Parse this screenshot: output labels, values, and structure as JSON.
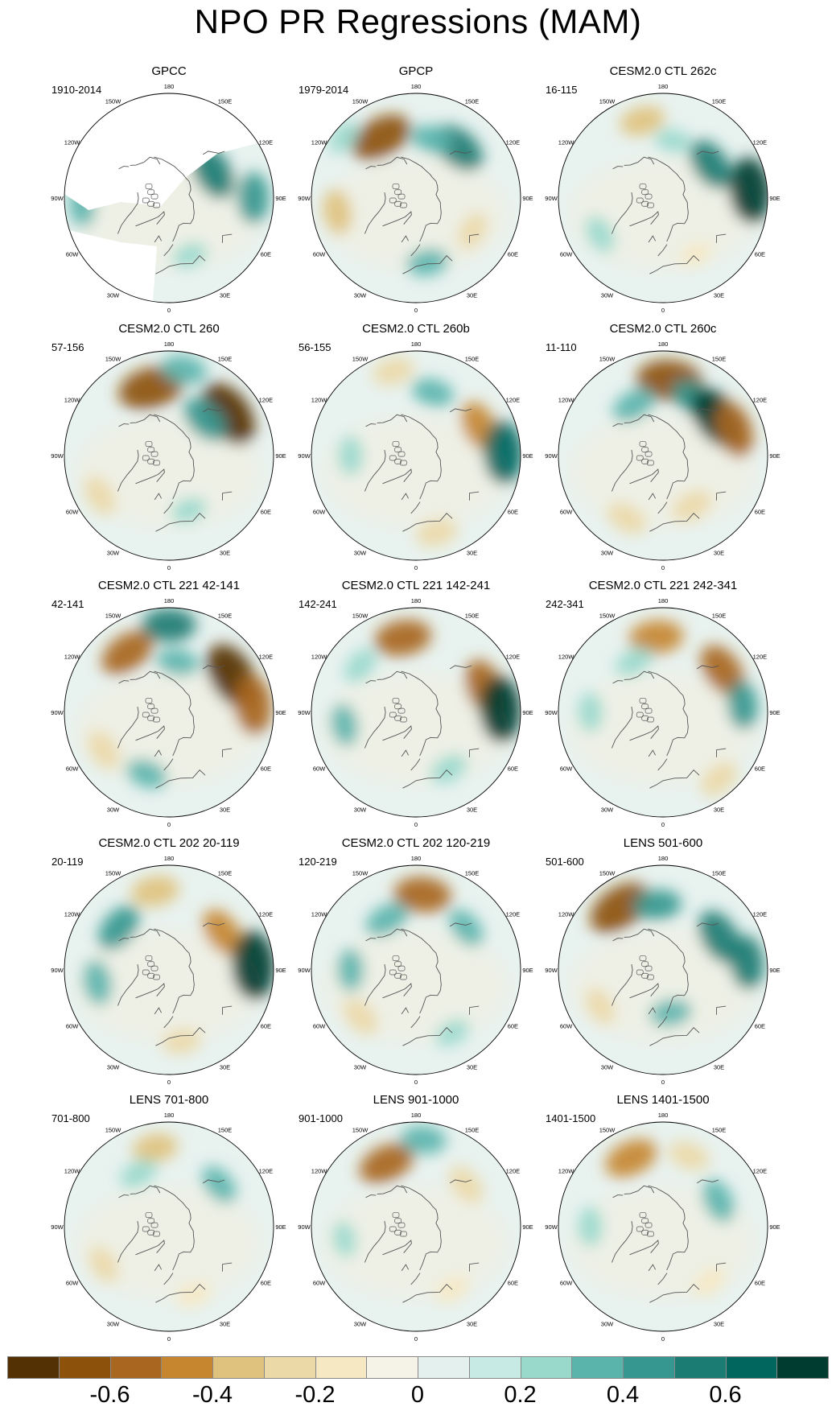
{
  "title": "NPO PR Regressions (MAM)",
  "longitude_labels": [
    "180",
    "150E",
    "120E",
    "90E",
    "60E",
    "30E",
    "0",
    "30W",
    "60W",
    "90W",
    "120W",
    "150W"
  ],
  "panels": [
    {
      "title": "GPCC",
      "years": "1910-2014",
      "masked": true,
      "anomalies": [
        {
          "lon": 200,
          "lat": 38,
          "v": -0.05
        },
        {
          "lon": 120,
          "lat": 55,
          "v": 0.55
        },
        {
          "lon": 90,
          "lat": 32,
          "v": 0.45
        },
        {
          "lon": 275,
          "lat": 30,
          "v": 0.3
        },
        {
          "lon": 20,
          "lat": 48,
          "v": 0.2
        }
      ]
    },
    {
      "title": "GPCP",
      "years": "1979-2014",
      "masked": false,
      "anomalies": [
        {
          "lon": 210,
          "lat": 42,
          "v": -0.65
        },
        {
          "lon": 140,
          "lat": 45,
          "v": 0.55
        },
        {
          "lon": 165,
          "lat": 48,
          "v": 0.3
        },
        {
          "lon": 280,
          "lat": 35,
          "v": -0.35
        },
        {
          "lon": 10,
          "lat": 45,
          "v": 0.3
        },
        {
          "lon": 60,
          "lat": 45,
          "v": -0.25
        },
        {
          "lon": 230,
          "lat": 25,
          "v": 0.2
        }
      ]
    },
    {
      "title": "CESM2.0 CTL 262c",
      "years": "16-115",
      "masked": false,
      "anomalies": [
        {
          "lon": 195,
          "lat": 35,
          "v": -0.35
        },
        {
          "lon": 125,
          "lat": 50,
          "v": 0.5
        },
        {
          "lon": 95,
          "lat": 30,
          "v": 0.7
        },
        {
          "lon": 170,
          "lat": 50,
          "v": 0.2
        },
        {
          "lon": 300,
          "lat": 40,
          "v": 0.25
        },
        {
          "lon": 30,
          "lat": 45,
          "v": -0.15
        }
      ]
    },
    {
      "title": "CESM2.0 CTL 260",
      "years": "57-156",
      "masked": false,
      "anomalies": [
        {
          "lon": 195,
          "lat": 42,
          "v": -0.7
        },
        {
          "lon": 170,
          "lat": 30,
          "v": 0.35
        },
        {
          "lon": 125,
          "lat": 40,
          "v": -0.75
        },
        {
          "lon": 135,
          "lat": 55,
          "v": 0.45
        },
        {
          "lon": 300,
          "lat": 35,
          "v": -0.3
        },
        {
          "lon": 20,
          "lat": 50,
          "v": 0.2
        }
      ]
    },
    {
      "title": "CESM2.0 CTL 260b",
      "years": "56-155",
      "masked": false,
      "anomalies": [
        {
          "lon": 195,
          "lat": 30,
          "v": -0.3
        },
        {
          "lon": 165,
          "lat": 45,
          "v": 0.3
        },
        {
          "lon": 115,
          "lat": 42,
          "v": -0.45
        },
        {
          "lon": 92,
          "lat": 30,
          "v": 0.65
        },
        {
          "lon": 15,
          "lat": 35,
          "v": -0.3
        },
        {
          "lon": 270,
          "lat": 45,
          "v": 0.25
        }
      ]
    },
    {
      "title": "CESM2.0 CTL 260c",
      "years": "11-110",
      "masked": false,
      "anomalies": [
        {
          "lon": 175,
          "lat": 38,
          "v": -0.7
        },
        {
          "lon": 150,
          "lat": 45,
          "v": 0.45
        },
        {
          "lon": 125,
          "lat": 45,
          "v": 0.7
        },
        {
          "lon": 110,
          "lat": 38,
          "v": -0.55
        },
        {
          "lon": 210,
          "lat": 50,
          "v": 0.35
        },
        {
          "lon": 330,
          "lat": 40,
          "v": -0.3
        },
        {
          "lon": 30,
          "lat": 50,
          "v": -0.3
        }
      ]
    },
    {
      "title": "CESM2.0 CTL 221 42-141",
      "years": "42-141",
      "masked": false,
      "anomalies": [
        {
          "lon": 215,
          "lat": 40,
          "v": -0.55
        },
        {
          "lon": 180,
          "lat": 30,
          "v": 0.5
        },
        {
          "lon": 120,
          "lat": 40,
          "v": -0.75
        },
        {
          "lon": 95,
          "lat": 32,
          "v": -0.6
        },
        {
          "lon": 300,
          "lat": 38,
          "v": -0.3
        },
        {
          "lon": 340,
          "lat": 45,
          "v": 0.3
        },
        {
          "lon": 170,
          "lat": 55,
          "v": 0.3
        }
      ]
    },
    {
      "title": "CESM2.0 CTL 221 142-241",
      "years": "142-241",
      "masked": false,
      "anomalies": [
        {
          "lon": 190,
          "lat": 38,
          "v": -0.55
        },
        {
          "lon": 110,
          "lat": 40,
          "v": -0.55
        },
        {
          "lon": 92,
          "lat": 32,
          "v": 0.7
        },
        {
          "lon": 230,
          "lat": 40,
          "v": 0.25
        },
        {
          "lon": 280,
          "lat": 40,
          "v": 0.3
        },
        {
          "lon": 30,
          "lat": 45,
          "v": 0.25
        }
      ]
    },
    {
      "title": "CESM2.0 CTL 221 242-341",
      "years": "242-341",
      "masked": false,
      "anomalies": [
        {
          "lon": 185,
          "lat": 38,
          "v": -0.5
        },
        {
          "lon": 125,
          "lat": 40,
          "v": -0.55
        },
        {
          "lon": 210,
          "lat": 50,
          "v": 0.25
        },
        {
          "lon": 270,
          "lat": 40,
          "v": 0.25
        },
        {
          "lon": 40,
          "lat": 30,
          "v": -0.3
        },
        {
          "lon": 95,
          "lat": 35,
          "v": 0.4
        }
      ]
    },
    {
      "title": "CESM2.0 CTL 202 20-119",
      "years": "20-119",
      "masked": false,
      "anomalies": [
        {
          "lon": 190,
          "lat": 35,
          "v": -0.4
        },
        {
          "lon": 230,
          "lat": 45,
          "v": 0.45
        },
        {
          "lon": 125,
          "lat": 45,
          "v": -0.45
        },
        {
          "lon": 93,
          "lat": 32,
          "v": 0.75
        },
        {
          "lon": 280,
          "lat": 40,
          "v": 0.35
        },
        {
          "lon": 10,
          "lat": 40,
          "v": -0.25
        }
      ]
    },
    {
      "title": "CESM2.0 CTL 202 120-219",
      "years": "120-219",
      "masked": false,
      "anomalies": [
        {
          "lon": 175,
          "lat": 38,
          "v": -0.55
        },
        {
          "lon": 210,
          "lat": 50,
          "v": 0.35
        },
        {
          "lon": 130,
          "lat": 45,
          "v": 0.3
        },
        {
          "lon": 310,
          "lat": 40,
          "v": -0.3
        },
        {
          "lon": 270,
          "lat": 45,
          "v": 0.3
        },
        {
          "lon": 30,
          "lat": 40,
          "v": 0.2
        }
      ]
    },
    {
      "title": "LENS 501-600",
      "years": "501-600",
      "masked": false,
      "anomalies": [
        {
          "lon": 215,
          "lat": 38,
          "v": -0.7
        },
        {
          "lon": 185,
          "lat": 45,
          "v": 0.4
        },
        {
          "lon": 120,
          "lat": 45,
          "v": 0.55
        },
        {
          "lon": 95,
          "lat": 32,
          "v": 0.5
        },
        {
          "lon": 300,
          "lat": 40,
          "v": -0.25
        },
        {
          "lon": 10,
          "lat": 60,
          "v": 0.3
        }
      ]
    },
    {
      "title": "LENS 701-800",
      "years": "701-800",
      "masked": false,
      "anomalies": [
        {
          "lon": 190,
          "lat": 35,
          "v": -0.35
        },
        {
          "lon": 210,
          "lat": 48,
          "v": 0.25
        },
        {
          "lon": 130,
          "lat": 45,
          "v": 0.3
        },
        {
          "lon": 300,
          "lat": 38,
          "v": -0.25
        },
        {
          "lon": 20,
          "lat": 40,
          "v": -0.2
        }
      ]
    },
    {
      "title": "LENS 901-1000",
      "years": "901-1000",
      "masked": false,
      "anomalies": [
        {
          "lon": 205,
          "lat": 42,
          "v": -0.55
        },
        {
          "lon": 175,
          "lat": 30,
          "v": 0.35
        },
        {
          "lon": 130,
          "lat": 45,
          "v": -0.3
        },
        {
          "lon": 280,
          "lat": 40,
          "v": 0.2
        },
        {
          "lon": 30,
          "lat": 40,
          "v": -0.2
        }
      ]
    },
    {
      "title": "LENS 1401-1500",
      "years": "1401-1500",
      "masked": false,
      "anomalies": [
        {
          "lon": 205,
          "lat": 38,
          "v": -0.5
        },
        {
          "lon": 160,
          "lat": 38,
          "v": -0.3
        },
        {
          "lon": 115,
          "lat": 48,
          "v": 0.35
        },
        {
          "lon": 270,
          "lat": 40,
          "v": 0.25
        },
        {
          "lon": 40,
          "lat": 40,
          "v": -0.2
        }
      ]
    }
  ],
  "colorbar": {
    "colors": [
      "#543005",
      "#8c510a",
      "#a86620",
      "#c6862f",
      "#dfc27d",
      "#ecd9a8",
      "#f6e8c3",
      "#f5f2e8",
      "#e3f0ee",
      "#c7eae5",
      "#99d9cc",
      "#5ab4ac",
      "#35978f",
      "#1b7c73",
      "#01665e",
      "#003c30"
    ],
    "tick_labels": [
      "-0.6",
      "-0.4",
      "-0.2",
      "0",
      "0.2",
      "0.4",
      "0.6"
    ],
    "range": [
      -0.8,
      0.8
    ]
  }
}
